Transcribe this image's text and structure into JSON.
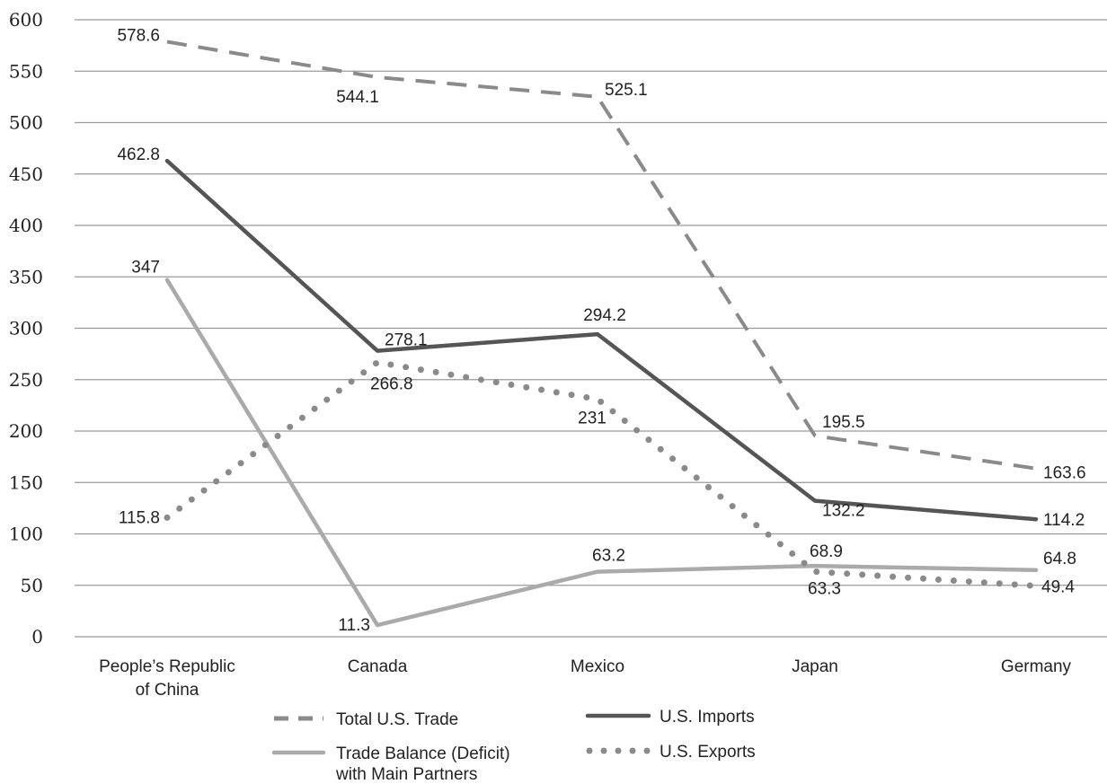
{
  "chart_data": {
    "type": "line",
    "title": "",
    "xlabel": "",
    "ylabel": "",
    "categories": [
      [
        "People’s Republic",
        "of China"
      ],
      [
        "Canada"
      ],
      [
        "Mexico"
      ],
      [
        "Japan"
      ],
      [
        "Germany"
      ]
    ],
    "y_ticks": [
      "0",
      "50",
      "100",
      "150",
      "200",
      "250",
      "300",
      "350",
      "400",
      "450",
      "500",
      "550",
      "600"
    ],
    "ylim": [
      0,
      600
    ],
    "grid": true,
    "legend_position": "bottom",
    "series": [
      {
        "key": "total",
        "name": "Total U.S. Trade",
        "name_lines": [
          "Total U.S. Trade"
        ],
        "values": [
          578.6,
          544.1,
          525.1,
          195.5,
          163.6
        ],
        "labels": [
          "578.6",
          "544.1",
          "525.1",
          "195.5",
          "163.6"
        ],
        "style": "dashed",
        "color": "#8a8a8a"
      },
      {
        "key": "imports",
        "name": "U.S. Imports",
        "name_lines": [
          "U.S. Imports"
        ],
        "values": [
          462.8,
          278.1,
          294.2,
          132.2,
          114.2
        ],
        "labels": [
          "462.8",
          "278.1",
          "294.2",
          "132.2",
          "114.2"
        ],
        "style": "solid",
        "color": "#555555"
      },
      {
        "key": "balance",
        "name": "Trade Balance (Deficit) with Main Partners",
        "name_lines": [
          "Trade Balance (Deficit)",
          "with Main Partners"
        ],
        "values": [
          347,
          11.3,
          63.2,
          68.9,
          64.8
        ],
        "labels": [
          "347",
          "11.3",
          "63.2",
          "68.9",
          "64.8"
        ],
        "style": "solid",
        "color": "#aaaaaa"
      },
      {
        "key": "exports",
        "name": "U.S. Exports",
        "name_lines": [
          "U.S. Exports"
        ],
        "values": [
          115.8,
          266.8,
          231,
          63.3,
          49.4
        ],
        "labels": [
          "115.8",
          "266.8",
          "231",
          "63.3",
          "49.4"
        ],
        "style": "dotted",
        "color": "#8a8a8a"
      }
    ]
  }
}
